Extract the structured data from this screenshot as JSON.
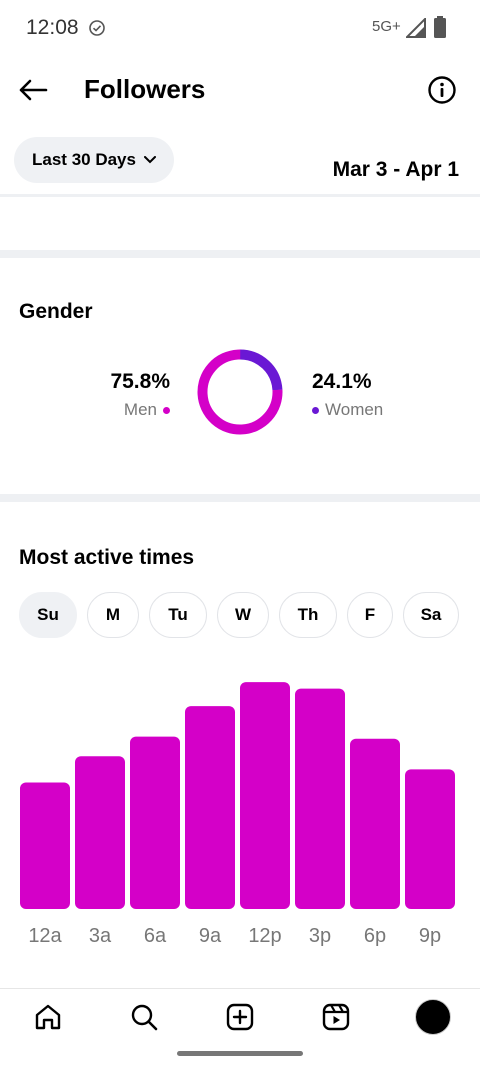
{
  "status_bar": {
    "time": "12:08",
    "network": "5G+"
  },
  "header": {
    "title": "Followers"
  },
  "filter": {
    "range_label": "Last 30 Days",
    "date_range": "Mar 3 - Apr 1"
  },
  "gender": {
    "title": "Gender",
    "men": {
      "value": "75.8%",
      "label": "Men",
      "fraction": 0.758,
      "color": "#d400c8"
    },
    "women": {
      "value": "24.1%",
      "label": "Women",
      "fraction": 0.241,
      "color": "#6a18d4"
    }
  },
  "active_times": {
    "title": "Most active times",
    "days": [
      "Su",
      "M",
      "Tu",
      "W",
      "Th",
      "F",
      "Sa"
    ],
    "selected_day": "Su",
    "bar_color": "#d400c8"
  },
  "chart_data": {
    "type": "bar",
    "categories": [
      "12a",
      "3a",
      "6a",
      "9a",
      "12p",
      "3p",
      "6p",
      "9p"
    ],
    "values": [
      58,
      70,
      79,
      93,
      104,
      101,
      78,
      64
    ],
    "ylim": [
      0,
      110
    ]
  },
  "bottom_nav": {
    "items": [
      "home-icon",
      "search-icon",
      "create-icon",
      "reels-icon",
      "profile-avatar"
    ]
  }
}
